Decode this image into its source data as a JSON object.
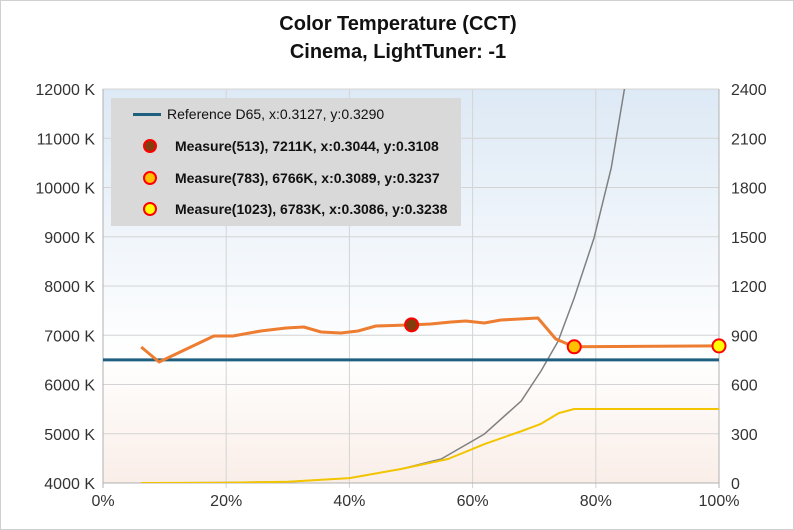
{
  "chart_data": {
    "type": "line",
    "title": "Color Temperature (CCT)",
    "subtitle": "Cinema, LightTuner: -1",
    "x_axis": {
      "range": [
        0,
        100
      ],
      "unit": "%",
      "ticks": [
        "0%",
        "20%",
        "40%",
        "60%",
        "80%",
        "100%"
      ]
    },
    "y_axis_left": {
      "range": [
        4000,
        12000
      ],
      "ticks": [
        "4000 K",
        "5000 K",
        "6000 K",
        "7000 K",
        "8000 K",
        "9000 K",
        "10000 K",
        "11000 K",
        "12000 K"
      ]
    },
    "y_axis_right": {
      "range": [
        0,
        2400
      ],
      "ticks": [
        "0",
        "300",
        "600",
        "900",
        "1200",
        "1500",
        "1800",
        "2100",
        "2400"
      ]
    },
    "grid": true,
    "legend_placement": "top-left",
    "series": [
      {
        "name": "Reference D65, x:0.3127, y:0.3290",
        "axis": "left",
        "color": "#1f5f80",
        "x": [
          0,
          100
        ],
        "y": [
          6500,
          6500
        ]
      },
      {
        "axis": "left",
        "color": "#ed7d31",
        "x": [
          6.2,
          9.1,
          18,
          21.1,
          25.6,
          29.7,
          32.6,
          35.4,
          38.6,
          41.4,
          44.3,
          50.1,
          53.2,
          56.5,
          58.9,
          61.9,
          64.6,
          70.6,
          73.5,
          76.5,
          100
        ],
        "y": [
          6761,
          6457,
          6985,
          6985,
          7086,
          7147,
          7168,
          7066,
          7046,
          7086,
          7188,
          7211,
          7228,
          7269,
          7289,
          7249,
          7310,
          7350,
          6924,
          6766,
          6783
        ]
      },
      {
        "axis": "right",
        "color": "#808080",
        "x": [
          6.2,
          20,
          30,
          40,
          48.4,
          54.9,
          61.9,
          67.9,
          71.1,
          73.9,
          76.5,
          79.7,
          82.5,
          84.6,
          86
        ],
        "y": [
          0,
          3,
          8,
          30,
          85,
          146,
          298,
          500,
          682,
          865,
          1127,
          1492,
          1918,
          2388,
          2700
        ]
      },
      {
        "axis": "right",
        "color": "#f2c500",
        "x": [
          6.2,
          20,
          30,
          40,
          48.4,
          56,
          62,
          68,
          71,
          74,
          76.5,
          100
        ],
        "y": [
          0,
          1,
          8,
          30,
          85,
          146,
          238,
          317,
          359,
          426,
          451,
          451
        ]
      }
    ],
    "markers": [
      {
        "name": "Measure(513), 7211K, x:0.3044, y:0.3108",
        "x": 50.1,
        "y": 7211,
        "fill": "#843c0c",
        "stroke": "#ff0000"
      },
      {
        "name": "Measure(783), 6766K, x:0.3089, y:0.3237",
        "x": 76.5,
        "y": 6766,
        "fill": "#ffc000",
        "stroke": "#ff0000"
      },
      {
        "name": "Measure(1023), 6783K, x:0.3086, y:0.3238",
        "x": 100,
        "y": 6783,
        "fill": "#ffff00",
        "stroke": "#ff0000"
      }
    ]
  }
}
